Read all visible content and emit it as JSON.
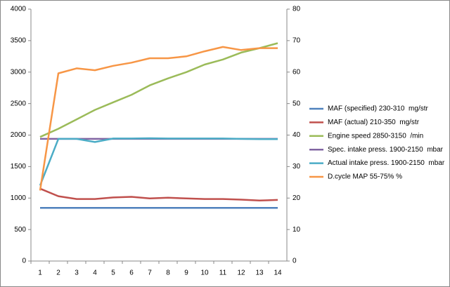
{
  "chart_data": {
    "type": "line",
    "categories": [
      "1",
      "2",
      "3",
      "4",
      "5",
      "6",
      "7",
      "8",
      "9",
      "10",
      "11",
      "12",
      "13",
      "14"
    ],
    "ylim": [
      0,
      4000
    ],
    "yticks": [
      0,
      500,
      1000,
      1500,
      2000,
      2500,
      3000,
      3500,
      4000
    ],
    "y2lim": [
      0,
      80
    ],
    "y2ticks": [
      0,
      10,
      20,
      30,
      40,
      50,
      60,
      70,
      80
    ],
    "grid": false,
    "legend": "right",
    "series": [
      {
        "name": "MAF (specified) 230-310  mg/str",
        "color": "#4f81bd",
        "values": [
          845,
          845,
          845,
          845,
          845,
          845,
          845,
          845,
          845,
          845,
          845,
          845,
          845,
          845
        ]
      },
      {
        "name": "MAF (actual) 210-350  mg/str",
        "color": "#c0504d",
        "values": [
          1150,
          1030,
          985,
          985,
          1010,
          1020,
          995,
          1005,
          995,
          985,
          985,
          975,
          960,
          970
        ]
      },
      {
        "name": "Engine speed 2850-3150  /min",
        "color": "#9bbb59",
        "values": [
          1970,
          2100,
          2250,
          2400,
          2520,
          2640,
          2790,
          2900,
          3000,
          3120,
          3200,
          3310,
          3380,
          3460
        ]
      },
      {
        "name": "Spec. intake press. 1900-2150  mbar",
        "color": "#8064a2",
        "values": [
          1940,
          1940,
          1940,
          1940,
          1940,
          1940,
          1940,
          1940,
          1940,
          1940,
          1940,
          1940,
          1940,
          1940
        ]
      },
      {
        "name": "Actual intake press. 1900-2150  mbar",
        "color": "#4bacc6",
        "values": [
          1200,
          1940,
          1940,
          1890,
          1945,
          1945,
          1950,
          1945,
          1945,
          1945,
          1945,
          1940,
          1935,
          1935
        ]
      },
      {
        "name": "D.cycle MAP 55-75% %",
        "color": "#f79646",
        "axis": "y2",
        "values": [
          22.4,
          59.6,
          61.2,
          60.6,
          62,
          63,
          64.4,
          64.4,
          65,
          66.6,
          68,
          67,
          67.6,
          67.6
        ]
      }
    ]
  }
}
